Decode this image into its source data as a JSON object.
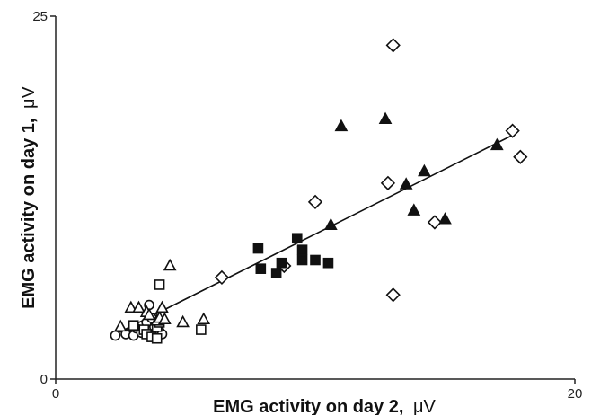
{
  "chart_data": {
    "type": "scatter",
    "title": "",
    "xlabel": "EMG activity on day 2,",
    "xlabel_unit": "μV",
    "ylabel": "EMG activity on day 1,",
    "ylabel_unit": "μV",
    "xlim": [
      0,
      20
    ],
    "ylim": [
      0,
      25
    ],
    "x_ticks": [
      "0",
      "20"
    ],
    "y_ticks": [
      "0",
      "25"
    ],
    "grid": false,
    "legend": "none",
    "series": [
      {
        "marker": "open-circle",
        "points": [
          [
            2.3,
            3.0
          ],
          [
            2.7,
            3.1
          ],
          [
            3.0,
            3.0
          ],
          [
            3.1,
            3.5
          ],
          [
            3.3,
            3.2
          ],
          [
            3.5,
            3.9
          ],
          [
            3.6,
            5.1
          ],
          [
            3.7,
            4.2
          ],
          [
            3.8,
            3.6
          ],
          [
            4.0,
            3.3
          ],
          [
            4.1,
            3.1
          ]
        ]
      },
      {
        "marker": "open-square",
        "points": [
          [
            3.0,
            3.7
          ],
          [
            3.4,
            3.4
          ],
          [
            3.5,
            3.1
          ],
          [
            3.7,
            2.9
          ],
          [
            3.9,
            2.8
          ],
          [
            3.9,
            3.6
          ],
          [
            4.0,
            3.9
          ],
          [
            4.0,
            6.5
          ],
          [
            5.6,
            3.4
          ]
        ]
      },
      {
        "marker": "open-triangle",
        "points": [
          [
            2.5,
            3.6
          ],
          [
            2.9,
            4.9
          ],
          [
            3.2,
            4.9
          ],
          [
            3.5,
            4.6
          ],
          [
            3.6,
            4.4
          ],
          [
            3.9,
            4.0
          ],
          [
            4.0,
            4.2
          ],
          [
            4.1,
            4.9
          ],
          [
            4.2,
            4.1
          ],
          [
            4.4,
            7.8
          ],
          [
            4.9,
            3.9
          ],
          [
            5.7,
            4.1
          ]
        ]
      },
      {
        "marker": "open-diamond",
        "points": [
          [
            6.4,
            7.0
          ],
          [
            8.8,
            7.8
          ],
          [
            10.0,
            12.2
          ],
          [
            12.8,
            13.5
          ],
          [
            13.0,
            5.8
          ],
          [
            13.0,
            23.0
          ],
          [
            14.6,
            10.8
          ],
          [
            17.6,
            17.1
          ],
          [
            17.9,
            15.3
          ]
        ]
      },
      {
        "marker": "filled-square",
        "points": [
          [
            7.8,
            9.0
          ],
          [
            7.9,
            7.6
          ],
          [
            8.5,
            7.3
          ],
          [
            8.7,
            8.0
          ],
          [
            9.3,
            9.7
          ],
          [
            9.5,
            8.9
          ],
          [
            9.5,
            8.2
          ],
          [
            10.0,
            8.2
          ],
          [
            10.5,
            8.0
          ]
        ]
      },
      {
        "marker": "filled-triangle",
        "points": [
          [
            10.6,
            10.6
          ],
          [
            11.0,
            17.4
          ],
          [
            12.7,
            17.9
          ],
          [
            13.5,
            13.4
          ],
          [
            13.8,
            11.6
          ],
          [
            14.2,
            14.3
          ],
          [
            15.0,
            11.0
          ],
          [
            17.0,
            16.1
          ]
        ]
      }
    ],
    "fit_line": {
      "x": [
        2.2,
        17.6
      ],
      "y": [
        3.0,
        16.8
      ]
    }
  }
}
